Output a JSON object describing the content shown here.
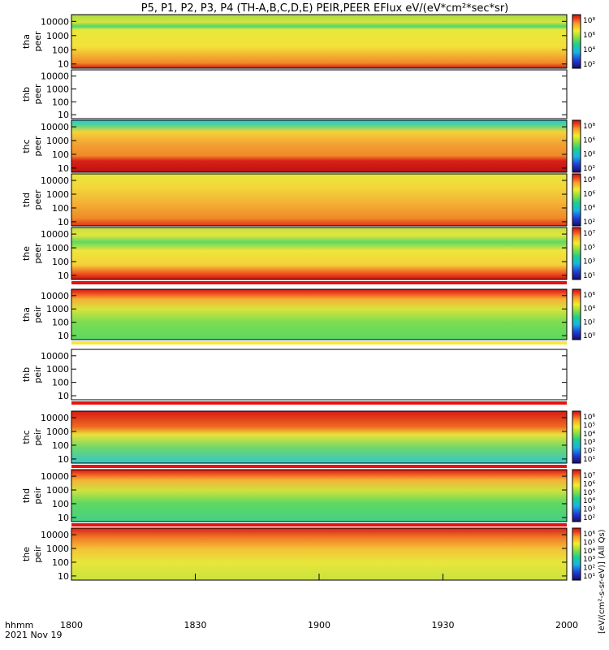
{
  "title": "P5, P1, P2, P3, P4 (TH-A,B,C,D,E) PEIR,PEER EFlux eV/(eV*cm²*sec*sr)",
  "x_corner_label": "hhmm",
  "date_label": "2021 Nov 19",
  "colorbar_unit_label": "[eV/(cm²-s-sr-eV)] (All Qs)",
  "chart_data": {
    "type": "heatmap",
    "x_axis": {
      "ticks": [
        "1800",
        "1830",
        "1900",
        "1930",
        "2000"
      ],
      "range": [
        "18:00",
        "20:00"
      ]
    },
    "y_axis": {
      "scale": "log",
      "ticks": [
        "10",
        "100",
        "1000",
        "10000"
      ],
      "range": [
        5,
        30000
      ]
    },
    "panels": [
      {
        "probe": "tha",
        "species": "peer",
        "ylabel_top": "tha",
        "ylabel_bottom": "peer",
        "has_data": true,
        "colorbar": {
          "ticks": [
            "10⁸",
            "10⁶",
            "10⁴",
            "10²"
          ]
        }
      },
      {
        "probe": "thb",
        "species": "peer",
        "ylabel_top": "thb",
        "ylabel_bottom": "peer",
        "has_data": false,
        "colorbar": null
      },
      {
        "probe": "thc",
        "species": "peer",
        "ylabel_top": "thc",
        "ylabel_bottom": "peer",
        "has_data": true,
        "colorbar": {
          "ticks": [
            "10⁸",
            "10⁶",
            "10⁴",
            "10²"
          ]
        }
      },
      {
        "probe": "thd",
        "species": "peer",
        "ylabel_top": "thd",
        "ylabel_bottom": "peer",
        "has_data": true,
        "colorbar": {
          "ticks": [
            "10⁸",
            "10⁶",
            "10⁴",
            "10²"
          ]
        }
      },
      {
        "probe": "the",
        "species": "peer",
        "ylabel_top": "the",
        "ylabel_bottom": "peer",
        "has_data": true,
        "colorbar": {
          "ticks": [
            "10⁷",
            "10⁵",
            "10³",
            "10¹"
          ]
        }
      },
      {
        "probe": "tha",
        "species": "peir",
        "ylabel_top": "tha",
        "ylabel_bottom": "peir",
        "has_data": true,
        "colorbar": {
          "ticks": [
            "10⁶",
            "10⁴",
            "10²",
            "10⁰"
          ]
        }
      },
      {
        "probe": "thb",
        "species": "peir",
        "ylabel_top": "thb",
        "ylabel_bottom": "peir",
        "has_data": false,
        "colorbar": null
      },
      {
        "probe": "thc",
        "species": "peir",
        "ylabel_top": "thc",
        "ylabel_bottom": "peir",
        "has_data": true,
        "colorbar": {
          "ticks": [
            "10⁶",
            "10⁵",
            "10⁴",
            "10³",
            "10²",
            "10¹"
          ]
        }
      },
      {
        "probe": "thd",
        "species": "peir",
        "ylabel_top": "thd",
        "ylabel_bottom": "peir",
        "has_data": true,
        "colorbar": {
          "ticks": [
            "10⁷",
            "10⁶",
            "10⁵",
            "10⁴",
            "10³",
            "10²"
          ]
        }
      },
      {
        "probe": "the",
        "species": "peir",
        "ylabel_top": "the",
        "ylabel_bottom": "peir",
        "has_data": true,
        "colorbar": {
          "ticks": [
            "10⁶",
            "10⁵",
            "10⁴",
            "10³",
            "10²",
            "10¹"
          ]
        }
      }
    ]
  }
}
